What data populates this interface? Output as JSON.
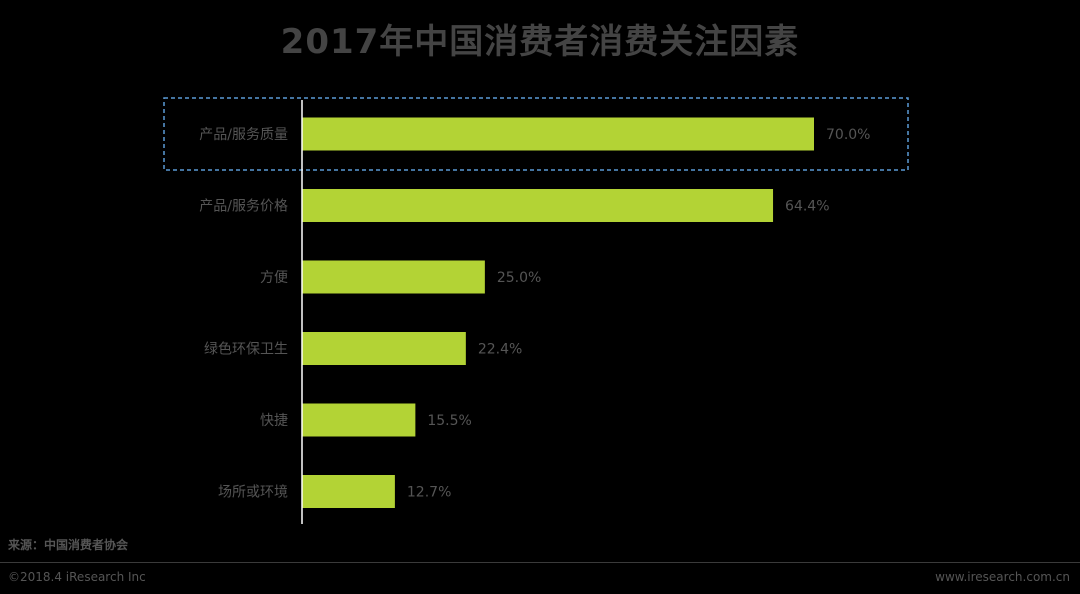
{
  "chart_data": {
    "type": "bar",
    "orientation": "horizontal",
    "title": "2017年中国消费者消费关注因素",
    "categories": [
      "产品/服务质量",
      "产品/服务价格",
      "方便",
      "绿色环保卫生",
      "快捷",
      "场所或环境"
    ],
    "values": [
      70.0,
      64.4,
      25.0,
      22.4,
      15.5,
      12.7
    ],
    "value_labels": [
      "70.0%",
      "64.4%",
      "25.0%",
      "22.4%",
      "15.5%",
      "12.7%"
    ],
    "xlim": [
      0,
      100
    ],
    "grid": false,
    "legend": "none",
    "highlighted_category": "产品/服务质量",
    "colors": {
      "bar": "#b3d335",
      "highlight_border": "#5b9bd5",
      "text": "#555555",
      "axis": "#ffffff"
    }
  },
  "source": "来源：中国消费者协会",
  "footer": {
    "copyright": "©2018.4 iResearch Inc",
    "website": "www.iresearch.com.cn"
  }
}
